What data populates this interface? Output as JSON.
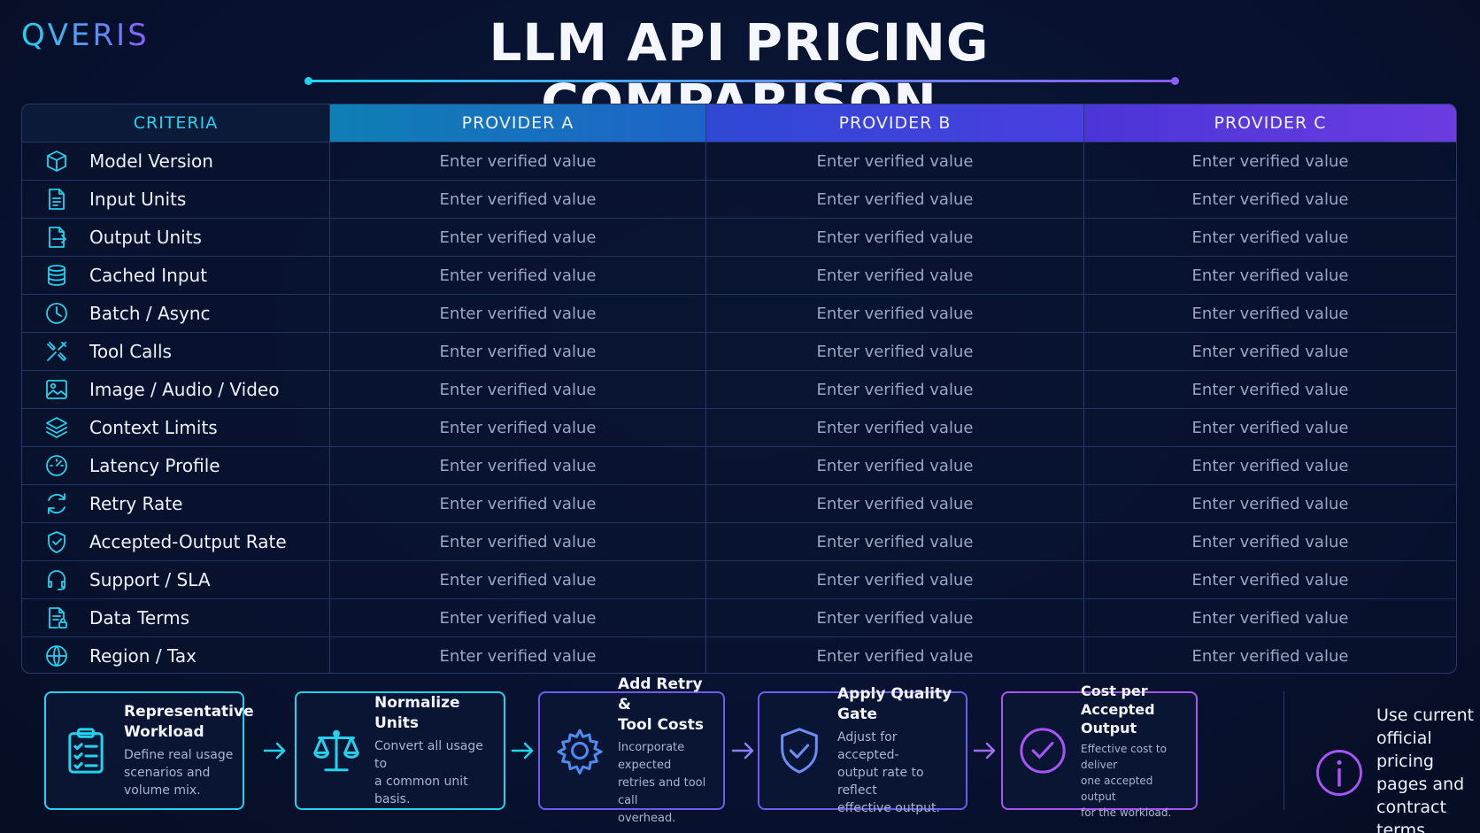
{
  "brand": {
    "logo": "QVERIS"
  },
  "header": {
    "title": "LLM API PRICING COMPARISON"
  },
  "table": {
    "columns": [
      "CRITERIA",
      "PROVIDER A",
      "PROVIDER B",
      "PROVIDER C"
    ],
    "rows": [
      {
        "label": "Model Version",
        "icon": "cube-icon",
        "a": "Enter verified value",
        "b": "Enter verified value",
        "c": "Enter verified value"
      },
      {
        "label": "Input Units",
        "icon": "document-input-icon",
        "a": "Enter verified value",
        "b": "Enter verified value",
        "c": "Enter verified value"
      },
      {
        "label": "Output Units",
        "icon": "document-output-icon",
        "a": "Enter verified value",
        "b": "Enter verified value",
        "c": "Enter verified value"
      },
      {
        "label": "Cached Input",
        "icon": "database-icon",
        "a": "Enter verified value",
        "b": "Enter verified value",
        "c": "Enter verified value"
      },
      {
        "label": "Batch / Async",
        "icon": "clock-icon",
        "a": "Enter verified value",
        "b": "Enter verified value",
        "c": "Enter verified value"
      },
      {
        "label": "Tool Calls",
        "icon": "tools-icon",
        "a": "Enter verified value",
        "b": "Enter verified value",
        "c": "Enter verified value"
      },
      {
        "label": "Image / Audio / Video",
        "icon": "image-icon",
        "a": "Enter verified value",
        "b": "Enter verified value",
        "c": "Enter verified value"
      },
      {
        "label": "Context Limits",
        "icon": "layers-icon",
        "a": "Enter verified value",
        "b": "Enter verified value",
        "c": "Enter verified value"
      },
      {
        "label": "Latency Profile",
        "icon": "gauge-icon",
        "a": "Enter verified value",
        "b": "Enter verified value",
        "c": "Enter verified value"
      },
      {
        "label": "Retry Rate",
        "icon": "refresh-icon",
        "a": "Enter verified value",
        "b": "Enter verified value",
        "c": "Enter verified value"
      },
      {
        "label": "Accepted-Output Rate",
        "icon": "shield-check-icon",
        "a": "Enter verified value",
        "b": "Enter verified value",
        "c": "Enter verified value"
      },
      {
        "label": "Support / SLA",
        "icon": "headset-icon",
        "a": "Enter verified value",
        "b": "Enter verified value",
        "c": "Enter verified value"
      },
      {
        "label": "Data Terms",
        "icon": "document-lock-icon",
        "a": "Enter verified value",
        "b": "Enter verified value",
        "c": "Enter verified value"
      },
      {
        "label": "Region / Tax",
        "icon": "globe-icon",
        "a": "Enter verified value",
        "b": "Enter verified value",
        "c": "Enter verified value"
      }
    ]
  },
  "steps": [
    {
      "title_1": "Representative",
      "title_2": "Workload",
      "desc_1": "Define real usage",
      "desc_2": "scenarios and",
      "desc_3": "volume mix.",
      "icon": "clipboard-checklist-icon"
    },
    {
      "title_1": "Normalize Units",
      "title_2": "",
      "desc_1": "Convert all usage to",
      "desc_2": "a common unit",
      "desc_3": "basis.",
      "icon": "scale-icon"
    },
    {
      "title_1": "Add Retry &",
      "title_2": "Tool Costs",
      "desc_1": "Incorporate expected",
      "desc_2": "retries and tool call",
      "desc_3": "overhead.",
      "icon": "gear-icon"
    },
    {
      "title_1": "Apply Quality Gate",
      "title_2": "",
      "desc_1": "Adjust for accepted-",
      "desc_2": "output rate to reflect",
      "desc_3": "effective output.",
      "icon": "shield-check-icon"
    },
    {
      "title_1": "Cost per",
      "title_2": "Accepted Output",
      "desc_1": "Effective cost to deliver",
      "desc_2": "one accepted output",
      "desc_3": "for the workload.",
      "icon": "check-circle-icon"
    }
  ],
  "note": {
    "line_1": "Use current",
    "line_2": "official pricing",
    "line_3": "pages and",
    "line_4": "contract terms.",
    "icon": "info-icon"
  },
  "colors": {
    "cyan": "#22d3ee",
    "purple": "#8b5cf6",
    "background": "#081230"
  }
}
